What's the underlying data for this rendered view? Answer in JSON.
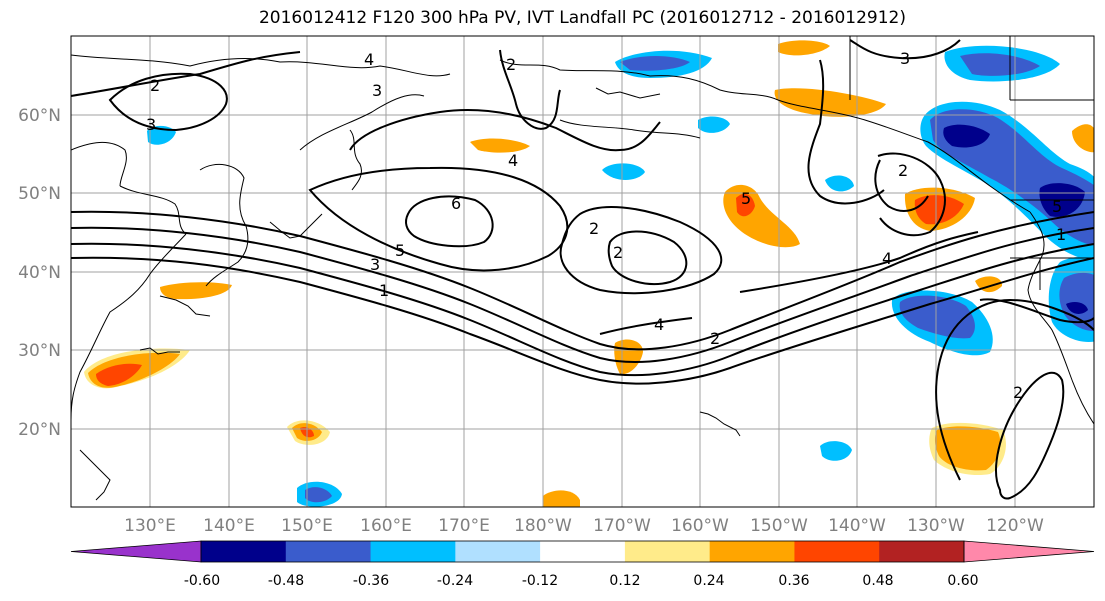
{
  "title": "2016012412 F120 300 hPa PV, IVT Landfall PC (2016012712 - 2016012912)",
  "lat_labels": [
    "60°N",
    "50°N",
    "40°N",
    "30°N",
    "20°N"
  ],
  "lon_labels": [
    "130°E",
    "140°E",
    "150°E",
    "160°E",
    "170°E",
    "180°W",
    "170°W",
    "160°W",
    "150°W",
    "140°W",
    "130°W",
    "120°W"
  ],
  "contour_labels": [
    "2",
    "3",
    "4",
    "3",
    "2",
    "3",
    "6",
    "5",
    "3",
    "1",
    "4",
    "2",
    "2",
    "4",
    "2",
    "2",
    "4",
    "5",
    "2",
    "5",
    "1"
  ],
  "colorbar": {
    "ticks": [
      "-0.60",
      "-0.48",
      "-0.36",
      "-0.24",
      "-0.12",
      "0.12",
      "0.24",
      "0.36",
      "0.48",
      "0.60"
    ],
    "colors": [
      "#9932cc",
      "#00008b",
      "#3a5ccc",
      "#00bfff",
      "#b0e0ff",
      "#ffffff",
      "#ffeb8a",
      "#ffa500",
      "#ff4500",
      "#b22222",
      "#ff88aa"
    ]
  },
  "colors": {
    "gridline": "#a0a0a0",
    "contour": "#000000",
    "coast": "#000000",
    "axis_label": "#808080"
  }
}
